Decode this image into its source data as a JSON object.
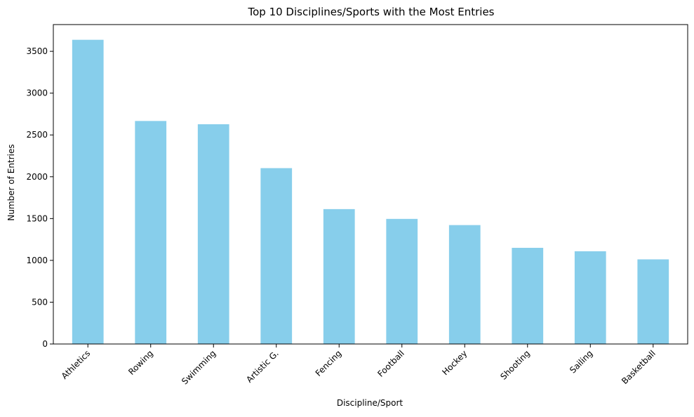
{
  "chart_data": {
    "type": "bar",
    "title": "Top 10 Disciplines/Sports with the Most Entries",
    "xlabel": "Discipline/Sport",
    "ylabel": "Number of Entries",
    "categories": [
      "Athletics",
      "Rowing",
      "Swimming",
      "Artistic G.",
      "Fencing",
      "Football",
      "Hockey",
      "Shooting",
      "Sailing",
      "Basketball"
    ],
    "values": [
      3638,
      2667,
      2628,
      2103,
      1613,
      1496,
      1422,
      1150,
      1109,
      1012
    ],
    "ylim": [
      0,
      3820
    ],
    "yticks": [
      0,
      500,
      1000,
      1500,
      2000,
      2500,
      3000,
      3500
    ],
    "bar_color": "#87ceeb",
    "grid": false,
    "legend": "none"
  }
}
